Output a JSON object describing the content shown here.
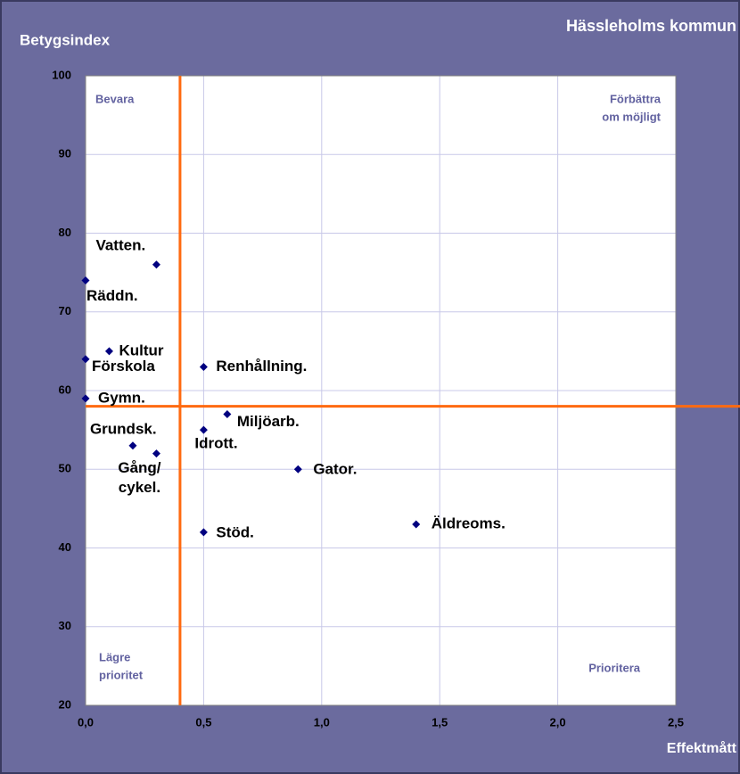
{
  "chart_data": {
    "type": "scatter",
    "title": "Hässleholms kommun",
    "ylabel": "Betygsindex",
    "xlabel": "Effektmått",
    "xlim": [
      0,
      2.5
    ],
    "ylim": [
      20,
      100
    ],
    "xticks": [
      {
        "value": 0,
        "label": "0,0"
      },
      {
        "value": 0.5,
        "label": "0,5"
      },
      {
        "value": 1,
        "label": "1,0"
      },
      {
        "value": 1.5,
        "label": "1,5"
      },
      {
        "value": 2,
        "label": "2,0"
      },
      {
        "value": 2.5,
        "label": "2,5"
      }
    ],
    "yticks": [
      20,
      30,
      40,
      50,
      60,
      70,
      80,
      90,
      100
    ],
    "grid": true,
    "reference_lines": {
      "x": 0.4,
      "y": 58,
      "color": "#ff6a10"
    },
    "quadrant_labels": {
      "top_left": [
        "Bevara"
      ],
      "top_right": [
        "Förbättra",
        "om möjligt"
      ],
      "bottom_left": [
        "Lägre",
        "prioritet"
      ],
      "bottom_right": [
        "Prioritera"
      ]
    },
    "series": [
      {
        "color": "#000080",
        "x": [
          0.3,
          0,
          0.1,
          0,
          0,
          0.5,
          0.6,
          0.5,
          0.2,
          0.3,
          0.9,
          0.5,
          1.4
        ],
        "values": [
          76,
          74,
          65,
          64,
          59,
          63,
          57,
          55,
          53,
          52,
          50,
          42,
          43
        ],
        "labels": [
          [
            "Vatten."
          ],
          [
            "Räddn."
          ],
          [
            "Kultur"
          ],
          [
            "Förskola"
          ],
          [
            "Gymn."
          ],
          [
            "Renhållning."
          ],
          [
            "Miljöarb."
          ],
          [
            "Idrott."
          ],
          [
            "Grundsk."
          ],
          [
            "Gång/",
            "cykel."
          ],
          [
            "Gator."
          ],
          [
            "Stöd."
          ],
          [
            "Äldreoms."
          ]
        ]
      }
    ]
  }
}
